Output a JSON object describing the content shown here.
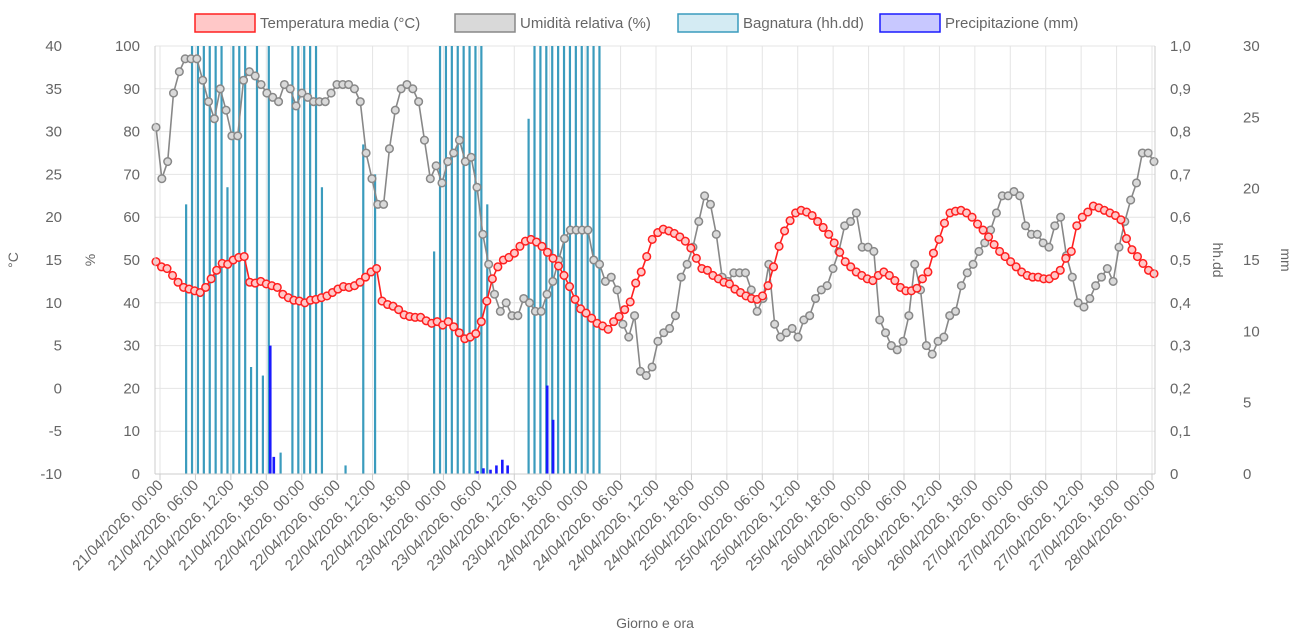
{
  "chart_data": {
    "type": "line",
    "xlabel": "Giorno e ora",
    "grid": true,
    "legend_position": "top-center",
    "x_labels": [
      "21/04/2026, 00:00",
      "21/04/2026, 06:00",
      "21/04/2026, 12:00",
      "21/04/2026, 18:00",
      "22/04/2026, 00:00",
      "22/04/2026, 06:00",
      "22/04/2026, 12:00",
      "22/04/2026, 18:00",
      "23/04/2026, 00:00",
      "23/04/2026, 06:00",
      "23/04/2026, 12:00",
      "23/04/2026, 18:00",
      "24/04/2026, 00:00",
      "24/04/2026, 06:00",
      "24/04/2026, 12:00",
      "24/04/2026, 18:00",
      "25/04/2026, 00:00",
      "25/04/2026, 06:00",
      "25/04/2026, 12:00",
      "25/04/2026, 18:00",
      "26/04/2026, 00:00",
      "26/04/2026, 06:00",
      "26/04/2026, 12:00",
      "26/04/2026, 18:00",
      "27/04/2026, 00:00",
      "27/04/2026, 06:00",
      "27/04/2026, 12:00",
      "27/04/2026, 18:00",
      "28/04/2026, 00:00"
    ],
    "axes": {
      "temp": {
        "label": "°C",
        "ticks": [
          "40",
          "35",
          "30",
          "25",
          "20",
          "15",
          "10",
          "5",
          "0",
          "-5",
          "-10"
        ],
        "min": -10,
        "max": 40
      },
      "hum": {
        "label": "%",
        "ticks": [
          "100",
          "90",
          "80",
          "70",
          "60",
          "50",
          "40",
          "30",
          "20",
          "10",
          "0"
        ],
        "min": 0,
        "max": 100
      },
      "wet": {
        "label": "hh.dd",
        "ticks": [
          "1,0",
          "0,9",
          "0,8",
          "0,7",
          "0,6",
          "0,5",
          "0,4",
          "0,3",
          "0,2",
          "0,1",
          "0"
        ],
        "min": 0,
        "max": 1
      },
      "rain": {
        "label": "mm",
        "ticks": [
          "30",
          "25",
          "20",
          "15",
          "10",
          "5",
          "0"
        ],
        "min": 0,
        "max": 30
      }
    },
    "series": [
      {
        "name": "Temperatura media (°C)",
        "kind": "line",
        "axis": "temp",
        "color": "#ff2020",
        "fill": "#ffc8c8",
        "values": [
          14.8,
          14.2,
          14,
          13.2,
          12.4,
          11.8,
          11.6,
          11.4,
          11.2,
          11.8,
          12.8,
          13.8,
          14.6,
          14.5,
          15,
          15.3,
          15.4,
          12.4,
          12.3,
          12.5,
          12.2,
          12,
          11.8,
          11,
          10.6,
          10.3,
          10.2,
          10,
          10.3,
          10.4,
          10.6,
          10.8,
          11.2,
          11.6,
          11.9,
          11.8,
          12,
          12.4,
          13,
          13.6,
          14,
          10.2,
          9.8,
          9.6,
          9.2,
          8.6,
          8.4,
          8.3,
          8.3,
          7.9,
          7.6,
          7.8,
          7.4,
          7.8,
          7.2,
          6.5,
          5.8,
          6,
          6.4,
          7.8,
          10.2,
          12.8,
          14.2,
          15,
          15.3,
          15.8,
          16.6,
          17.2,
          17.4,
          17.1,
          16.6,
          15.9,
          15.2,
          14.3,
          13.2,
          11.9,
          10.4,
          9.3,
          8.8,
          8.2,
          7.6,
          7.3,
          6.9,
          7.8,
          8.4,
          9.2,
          10.1,
          12.3,
          13.6,
          15.4,
          17.4,
          18.2,
          18.6,
          18.4,
          18.1,
          17.7,
          17.2,
          16.4,
          15.2,
          14,
          13.8,
          13.2,
          12.8,
          12.4,
          12.2,
          11.6,
          11.2,
          10.8,
          10.5,
          10.4,
          10.8,
          12,
          14.2,
          16.6,
          18.4,
          19.6,
          20.5,
          20.8,
          20.6,
          20.2,
          19.5,
          18.8,
          18,
          17,
          15.9,
          14.8,
          14.2,
          13.6,
          13.2,
          12.8,
          12.6,
          13.2,
          13.6,
          13.2,
          12.6,
          11.8,
          11.4,
          11.4,
          11.7,
          12.8,
          13.6,
          15.8,
          17.4,
          19.3,
          20.5,
          20.7,
          20.8,
          20.5,
          20,
          19.2,
          18.5,
          17.7,
          16.8,
          16,
          15.4,
          14.8,
          14.2,
          13.6,
          13.2,
          13,
          13,
          12.8,
          12.8,
          13.2,
          13.8,
          15.2,
          16,
          19,
          20,
          20.6,
          21.3,
          21.1,
          20.8,
          20.5,
          20.2,
          19.7,
          17.5,
          16.2,
          15.4,
          14.6,
          13.8,
          13.4
        ]
      },
      {
        "name": "Umidità relativa (%)",
        "kind": "line",
        "axis": "hum",
        "color": "#888888",
        "fill": "#d9d9d9",
        "values": [
          81,
          69,
          73,
          89,
          94,
          97,
          97,
          97,
          92,
          87,
          83,
          90,
          85,
          79,
          79,
          92,
          94,
          93,
          91,
          89,
          88,
          87,
          91,
          90,
          86,
          89,
          88,
          87,
          87,
          87,
          89,
          91,
          91,
          91,
          90,
          87,
          75,
          69,
          63,
          63,
          76,
          85,
          90,
          91,
          90,
          87,
          78,
          69,
          72,
          68,
          73,
          75,
          78,
          73,
          74,
          67,
          56,
          49,
          42,
          38,
          40,
          37,
          37,
          41,
          40,
          38,
          38,
          42,
          45,
          50,
          55,
          57,
          57,
          57,
          57,
          50,
          49,
          45,
          46,
          43,
          35,
          32,
          37,
          24,
          23,
          25,
          31,
          33,
          34,
          37,
          46,
          49,
          53,
          59,
          65,
          63,
          56,
          46,
          45,
          47,
          47,
          47,
          43,
          38,
          41,
          49,
          35,
          32,
          33,
          34,
          32,
          36,
          37,
          41,
          43,
          44,
          48,
          52,
          58,
          59,
          61,
          53,
          53,
          52,
          36,
          33,
          30,
          29,
          31,
          37,
          49,
          43,
          30,
          28,
          31,
          32,
          37,
          38,
          44,
          47,
          49,
          52,
          54,
          57,
          61,
          65,
          65,
          66,
          65,
          58,
          56,
          56,
          54,
          53,
          58,
          60,
          51,
          46,
          40,
          39,
          41,
          44,
          46,
          48,
          45,
          53,
          59,
          64,
          68,
          75,
          75,
          73
        ]
      },
      {
        "name": "Bagnatura (hh.dd)",
        "kind": "bar",
        "axis": "wet",
        "color": "#3a9bbd",
        "fill": "#d4ebf3",
        "values": [
          0,
          0,
          0,
          0,
          0,
          0.63,
          1,
          1,
          1,
          1,
          1,
          1,
          0.67,
          1,
          1,
          1,
          0.25,
          1,
          0.23,
          1,
          0,
          0.05,
          0,
          1,
          1,
          1,
          1,
          1,
          0.67,
          0,
          0,
          0,
          0.02,
          0,
          0,
          0.77,
          0,
          0.7,
          0,
          0,
          0,
          0,
          0,
          0,
          0,
          0,
          0,
          0.52,
          1,
          1,
          1,
          1,
          1,
          1,
          1,
          1,
          0.63,
          0,
          0,
          0,
          0,
          0,
          0,
          0.83,
          1,
          1,
          1,
          1,
          1,
          1,
          1,
          1,
          1,
          1,
          1,
          1
        ]
      },
      {
        "name": "Precipitazione (mm)",
        "kind": "bar",
        "axis": "rain",
        "color": "#1a1aff",
        "fill": "#c8c8ff",
        "values": [
          {
            "x": 19.3,
            "y": 9
          },
          {
            "x": 19.9,
            "y": 1.2
          },
          {
            "x": 54.4,
            "y": 0.2
          },
          {
            "x": 55.4,
            "y": 0.4
          },
          {
            "x": 56.6,
            "y": 0.3
          },
          {
            "x": 57.6,
            "y": 0.6
          },
          {
            "x": 58.6,
            "y": 1
          },
          {
            "x": 59.5,
            "y": 0.6
          },
          {
            "x": 66.2,
            "y": 6.2
          },
          {
            "x": 67.2,
            "y": 3.8
          }
        ]
      }
    ]
  }
}
